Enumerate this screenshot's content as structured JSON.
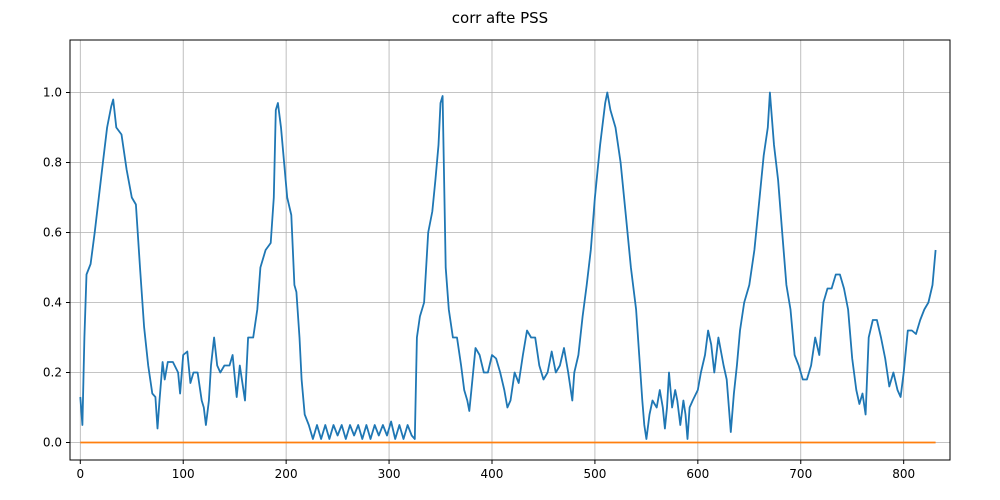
{
  "chart_data": {
    "type": "line",
    "title": "corr afte PSS",
    "xlabel": "",
    "ylabel": "",
    "xlim": [
      -10,
      845
    ],
    "ylim": [
      -0.05,
      1.15
    ],
    "grid": true,
    "xticks": [
      0,
      100,
      200,
      300,
      400,
      500,
      600,
      700,
      800
    ],
    "yticks": [
      0.0,
      0.2,
      0.4,
      0.6,
      0.8,
      1.0
    ],
    "xtick_labels": [
      "0",
      "100",
      "200",
      "300",
      "400",
      "500",
      "600",
      "700",
      "800"
    ],
    "ytick_labels": [
      "0.0",
      "0.2",
      "0.4",
      "0.6",
      "0.8",
      "1.0"
    ],
    "series": [
      {
        "color": "#1f77b4",
        "points": [
          [
            0,
            0.13
          ],
          [
            2,
            0.05
          ],
          [
            4,
            0.3
          ],
          [
            6,
            0.48
          ],
          [
            10,
            0.51
          ],
          [
            14,
            0.6
          ],
          [
            18,
            0.7
          ],
          [
            22,
            0.8
          ],
          [
            26,
            0.9
          ],
          [
            30,
            0.96
          ],
          [
            32,
            0.98
          ],
          [
            35,
            0.9
          ],
          [
            40,
            0.88
          ],
          [
            45,
            0.78
          ],
          [
            50,
            0.7
          ],
          [
            54,
            0.68
          ],
          [
            58,
            0.5
          ],
          [
            62,
            0.33
          ],
          [
            66,
            0.22
          ],
          [
            70,
            0.14
          ],
          [
            73,
            0.13
          ],
          [
            75,
            0.04
          ],
          [
            77,
            0.12
          ],
          [
            80,
            0.23
          ],
          [
            82,
            0.18
          ],
          [
            85,
            0.23
          ],
          [
            90,
            0.23
          ],
          [
            95,
            0.2
          ],
          [
            97,
            0.14
          ],
          [
            100,
            0.25
          ],
          [
            104,
            0.26
          ],
          [
            107,
            0.17
          ],
          [
            110,
            0.2
          ],
          [
            114,
            0.2
          ],
          [
            118,
            0.12
          ],
          [
            120,
            0.1
          ],
          [
            122,
            0.05
          ],
          [
            125,
            0.12
          ],
          [
            127,
            0.22
          ],
          [
            130,
            0.3
          ],
          [
            133,
            0.22
          ],
          [
            136,
            0.2
          ],
          [
            140,
            0.22
          ],
          [
            145,
            0.22
          ],
          [
            148,
            0.25
          ],
          [
            152,
            0.13
          ],
          [
            155,
            0.22
          ],
          [
            160,
            0.12
          ],
          [
            163,
            0.3
          ],
          [
            168,
            0.3
          ],
          [
            172,
            0.38
          ],
          [
            175,
            0.5
          ],
          [
            180,
            0.55
          ],
          [
            185,
            0.57
          ],
          [
            188,
            0.7
          ],
          [
            190,
            0.95
          ],
          [
            192,
            0.97
          ],
          [
            195,
            0.9
          ],
          [
            198,
            0.8
          ],
          [
            201,
            0.7
          ],
          [
            205,
            0.65
          ],
          [
            208,
            0.45
          ],
          [
            210,
            0.43
          ],
          [
            213,
            0.3
          ],
          [
            215,
            0.18
          ],
          [
            218,
            0.08
          ],
          [
            222,
            0.05
          ],
          [
            226,
            0.01
          ],
          [
            230,
            0.05
          ],
          [
            234,
            0.01
          ],
          [
            238,
            0.05
          ],
          [
            242,
            0.01
          ],
          [
            246,
            0.05
          ],
          [
            250,
            0.02
          ],
          [
            254,
            0.05
          ],
          [
            258,
            0.01
          ],
          [
            262,
            0.05
          ],
          [
            266,
            0.02
          ],
          [
            270,
            0.05
          ],
          [
            274,
            0.01
          ],
          [
            278,
            0.05
          ],
          [
            282,
            0.01
          ],
          [
            286,
            0.05
          ],
          [
            290,
            0.02
          ],
          [
            294,
            0.05
          ],
          [
            298,
            0.02
          ],
          [
            302,
            0.06
          ],
          [
            306,
            0.01
          ],
          [
            310,
            0.05
          ],
          [
            314,
            0.01
          ],
          [
            318,
            0.05
          ],
          [
            322,
            0.02
          ],
          [
            325,
            0.01
          ],
          [
            327,
            0.3
          ],
          [
            330,
            0.36
          ],
          [
            334,
            0.4
          ],
          [
            338,
            0.6
          ],
          [
            342,
            0.66
          ],
          [
            345,
            0.75
          ],
          [
            348,
            0.85
          ],
          [
            350,
            0.97
          ],
          [
            352,
            0.99
          ],
          [
            355,
            0.5
          ],
          [
            358,
            0.38
          ],
          [
            362,
            0.3
          ],
          [
            366,
            0.3
          ],
          [
            370,
            0.22
          ],
          [
            373,
            0.15
          ],
          [
            376,
            0.12
          ],
          [
            378,
            0.09
          ],
          [
            380,
            0.15
          ],
          [
            384,
            0.27
          ],
          [
            388,
            0.25
          ],
          [
            392,
            0.2
          ],
          [
            396,
            0.2
          ],
          [
            400,
            0.25
          ],
          [
            404,
            0.24
          ],
          [
            408,
            0.2
          ],
          [
            412,
            0.15
          ],
          [
            415,
            0.1
          ],
          [
            418,
            0.12
          ],
          [
            422,
            0.2
          ],
          [
            426,
            0.17
          ],
          [
            430,
            0.25
          ],
          [
            434,
            0.32
          ],
          [
            438,
            0.3
          ],
          [
            442,
            0.3
          ],
          [
            446,
            0.22
          ],
          [
            450,
            0.18
          ],
          [
            454,
            0.2
          ],
          [
            458,
            0.26
          ],
          [
            462,
            0.2
          ],
          [
            466,
            0.22
          ],
          [
            470,
            0.27
          ],
          [
            474,
            0.2
          ],
          [
            478,
            0.12
          ],
          [
            480,
            0.2
          ],
          [
            484,
            0.25
          ],
          [
            488,
            0.36
          ],
          [
            492,
            0.45
          ],
          [
            496,
            0.55
          ],
          [
            500,
            0.7
          ],
          [
            505,
            0.85
          ],
          [
            510,
            0.97
          ],
          [
            512,
            1.0
          ],
          [
            515,
            0.95
          ],
          [
            520,
            0.9
          ],
          [
            525,
            0.8
          ],
          [
            530,
            0.65
          ],
          [
            535,
            0.5
          ],
          [
            540,
            0.38
          ],
          [
            543,
            0.25
          ],
          [
            546,
            0.12
          ],
          [
            548,
            0.05
          ],
          [
            550,
            0.01
          ],
          [
            553,
            0.08
          ],
          [
            556,
            0.12
          ],
          [
            560,
            0.1
          ],
          [
            563,
            0.15
          ],
          [
            566,
            0.1
          ],
          [
            568,
            0.04
          ],
          [
            570,
            0.1
          ],
          [
            572,
            0.2
          ],
          [
            575,
            0.1
          ],
          [
            578,
            0.15
          ],
          [
            580,
            0.12
          ],
          [
            583,
            0.05
          ],
          [
            586,
            0.12
          ],
          [
            588,
            0.08
          ],
          [
            590,
            0.01
          ],
          [
            592,
            0.1
          ],
          [
            595,
            0.12
          ],
          [
            600,
            0.15
          ],
          [
            603,
            0.2
          ],
          [
            607,
            0.25
          ],
          [
            610,
            0.32
          ],
          [
            613,
            0.28
          ],
          [
            616,
            0.2
          ],
          [
            620,
            0.3
          ],
          [
            625,
            0.22
          ],
          [
            628,
            0.18
          ],
          [
            632,
            0.03
          ],
          [
            635,
            0.14
          ],
          [
            638,
            0.22
          ],
          [
            641,
            0.32
          ],
          [
            645,
            0.4
          ],
          [
            650,
            0.45
          ],
          [
            655,
            0.55
          ],
          [
            660,
            0.7
          ],
          [
            664,
            0.82
          ],
          [
            668,
            0.9
          ],
          [
            670,
            1.0
          ],
          [
            674,
            0.85
          ],
          [
            678,
            0.75
          ],
          [
            682,
            0.6
          ],
          [
            686,
            0.45
          ],
          [
            690,
            0.38
          ],
          [
            694,
            0.25
          ],
          [
            698,
            0.22
          ],
          [
            702,
            0.18
          ],
          [
            706,
            0.18
          ],
          [
            710,
            0.22
          ],
          [
            714,
            0.3
          ],
          [
            718,
            0.25
          ],
          [
            722,
            0.4
          ],
          [
            726,
            0.44
          ],
          [
            730,
            0.44
          ],
          [
            734,
            0.48
          ],
          [
            738,
            0.48
          ],
          [
            742,
            0.44
          ],
          [
            746,
            0.38
          ],
          [
            750,
            0.24
          ],
          [
            754,
            0.15
          ],
          [
            757,
            0.11
          ],
          [
            760,
            0.14
          ],
          [
            763,
            0.08
          ],
          [
            766,
            0.3
          ],
          [
            770,
            0.35
          ],
          [
            774,
            0.35
          ],
          [
            778,
            0.3
          ],
          [
            782,
            0.24
          ],
          [
            786,
            0.16
          ],
          [
            790,
            0.2
          ],
          [
            794,
            0.15
          ],
          [
            797,
            0.13
          ],
          [
            800,
            0.2
          ],
          [
            804,
            0.32
          ],
          [
            808,
            0.32
          ],
          [
            812,
            0.31
          ],
          [
            816,
            0.35
          ],
          [
            820,
            0.38
          ],
          [
            824,
            0.4
          ],
          [
            828,
            0.45
          ],
          [
            831,
            0.55
          ]
        ]
      },
      {
        "color": "#ff7f0e",
        "points": [
          [
            0,
            0.0
          ],
          [
            831,
            0.0
          ]
        ]
      }
    ]
  }
}
